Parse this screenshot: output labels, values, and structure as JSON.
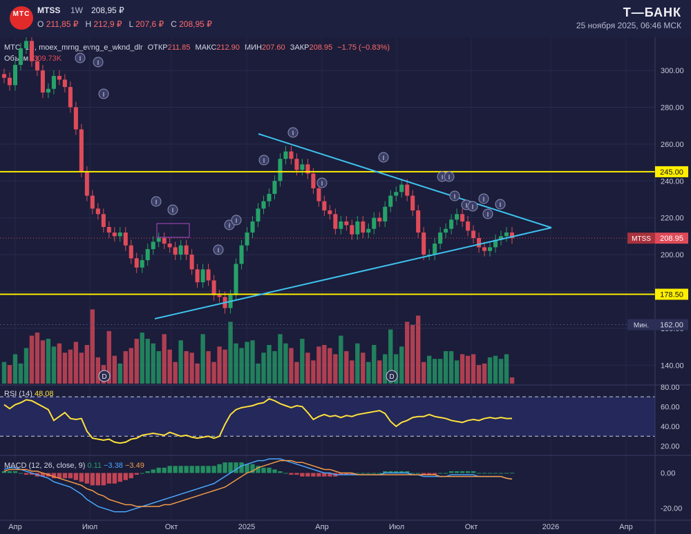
{
  "header": {
    "logo_text": "МТС",
    "ticker": "MTSS",
    "timeframe": "1W",
    "last_price": "208,95 ₽",
    "ohlc": [
      {
        "label": "O",
        "value": "211,85 ₽"
      },
      {
        "label": "H",
        "value": "212,9 ₽"
      },
      {
        "label": "L",
        "value": "207,6 ₽"
      },
      {
        "label": "C",
        "value": "208,95 ₽"
      }
    ],
    "brand": "Т—БАНК",
    "datetime": "25 ноября 2025, 06:46 МСК"
  },
  "legend": {
    "series_title": "МТС, 1H, moex_mrng_evng_e_wknd_dlr",
    "open_label": "ОТКР",
    "open": "211.85",
    "high_label": "МАКС",
    "high": "212.90",
    "low_label": "МИН",
    "low": "207.60",
    "close_label": "ЗАКР",
    "close": "208.95",
    "change": "−1.75 (−0.83%)",
    "volume_label": "Объем",
    "volume_value": "309.73K"
  },
  "colors": {
    "bg": "#1b1d3a",
    "up": "#26a269",
    "down": "#e04b59",
    "level": "#ffee00",
    "trend": "#3fc3f0",
    "rsi": "#ffe23b",
    "macd": "#4aa8ff",
    "signal": "#f39c47"
  },
  "chart_data": [
    {
      "type": "candlestick",
      "title": "МТС, 1H, moex_mrng_evng_e_wknd_dlr",
      "y_axis_ticks": [
        140,
        160,
        180,
        200,
        220,
        240,
        260,
        280,
        300
      ],
      "x_axis_ticks": [
        "Апр",
        "Июл",
        "Окт",
        "2025",
        "Апр",
        "Июл",
        "Окт",
        "2026",
        "Апр"
      ],
      "ylim": [
        130,
        318
      ],
      "horizontal_levels": [
        {
          "value": 245.0,
          "label": "245.00"
        },
        {
          "value": 178.5,
          "label": "178.50"
        }
      ],
      "low_marker": {
        "label": "Мин.",
        "value": "162.00"
      },
      "current_price": {
        "ticker": "MTSS",
        "value": "208.95"
      },
      "event_markers": [
        "I",
        "D"
      ],
      "candles_close": [
        296,
        292,
        303,
        312,
        316,
        305,
        300,
        288,
        290,
        297,
        295,
        291,
        280,
        268,
        245,
        232,
        225,
        222,
        215,
        212,
        210,
        212,
        205,
        198,
        193,
        197,
        203,
        207,
        209,
        206,
        204,
        200,
        205,
        200,
        192,
        185,
        192,
        186,
        178,
        177,
        171,
        178,
        195,
        205,
        212,
        218,
        225,
        229,
        233,
        240,
        252,
        256,
        252,
        246,
        249,
        244,
        236,
        229,
        224,
        222,
        214,
        218,
        216,
        211,
        218,
        212,
        214,
        220,
        218,
        226,
        232,
        234,
        238,
        232,
        224,
        212,
        200,
        200,
        206,
        212,
        214,
        219,
        222,
        218,
        213,
        209,
        204,
        202,
        204,
        208,
        210,
        212,
        208.95
      ]
    },
    {
      "type": "bar",
      "title": "Объем",
      "values": [
        14,
        12,
        19,
        13,
        23,
        31,
        33,
        28,
        29,
        24,
        26,
        20,
        22,
        27,
        20,
        25,
        48,
        17,
        12,
        34,
        18,
        13,
        21,
        23,
        29,
        33,
        29,
        26,
        21,
        32,
        22,
        14,
        28,
        21,
        20,
        13,
        32,
        21,
        14,
        24,
        22,
        40,
        26,
        23,
        27,
        28,
        13,
        20,
        25,
        21,
        32,
        26,
        23,
        14,
        29,
        20,
        15,
        24,
        25,
        23,
        19,
        31,
        21,
        15,
        26,
        20,
        14,
        25,
        15,
        19,
        35,
        19,
        24,
        40,
        38,
        44,
        14,
        18,
        16,
        16,
        21,
        21,
        15,
        19,
        18,
        19,
        12,
        13,
        17,
        18,
        16,
        19,
        4
      ]
    },
    {
      "type": "line",
      "title": "RSI (14)",
      "last_value": "48.08",
      "y_axis_ticks": [
        20.0,
        40.0,
        60.0,
        80.0
      ],
      "bands": [
        30,
        70
      ],
      "ylim": [
        12,
        82
      ],
      "values": [
        62,
        58,
        62,
        64,
        67,
        66,
        63,
        60,
        57,
        46,
        50,
        54,
        48,
        47,
        48,
        35,
        28,
        27,
        26,
        27,
        24,
        23,
        24,
        27,
        28,
        31,
        32,
        33,
        32,
        31,
        34,
        32,
        30,
        31,
        29,
        28,
        29,
        30,
        28,
        30,
        42,
        52,
        57,
        59,
        60,
        61,
        63,
        64,
        68,
        66,
        63,
        61,
        59,
        61,
        60,
        54,
        47,
        50,
        52,
        50,
        51,
        49,
        51,
        50,
        52,
        53,
        54,
        55,
        56,
        53,
        45,
        40,
        44,
        46,
        49,
        50,
        50,
        52,
        50,
        49,
        48,
        46,
        45,
        44,
        46,
        47,
        46,
        48,
        49,
        48,
        49,
        48,
        48.08
      ]
    },
    {
      "type": "line",
      "title": "MACD (12, 26, close, 9)",
      "values_label": [
        "0.11",
        "−3.38",
        "−3.49"
      ],
      "y_axis_ticks": [
        -20.0,
        0.0
      ],
      "ylim": [
        -26,
        10
      ],
      "macd": [
        2,
        3,
        3,
        2,
        1,
        0,
        -1,
        -2,
        -3,
        -5,
        -6,
        -7,
        -8,
        -10,
        -12,
        -15,
        -17,
        -19,
        -20,
        -21,
        -22,
        -22,
        -22,
        -21,
        -20,
        -19,
        -18,
        -17,
        -16,
        -15,
        -14,
        -13,
        -12,
        -11,
        -10,
        -9,
        -8,
        -7,
        -6,
        -4,
        -2,
        0,
        2,
        4,
        5,
        6,
        7,
        7,
        8,
        8,
        8,
        7,
        6,
        5,
        4,
        3,
        2,
        1,
        0,
        0,
        -1,
        -1,
        -1,
        -1,
        -1,
        -1,
        -1,
        -1,
        -1,
        0,
        0,
        0,
        0,
        0,
        -1,
        -1,
        -2,
        -2,
        -2,
        -2,
        -2,
        -1,
        -1,
        -1,
        -1,
        -1,
        -2,
        -2,
        -2,
        -2,
        -2,
        -3,
        -3.38
      ],
      "signal": [
        1,
        2,
        2,
        2,
        2,
        1,
        1,
        0,
        -1,
        -2,
        -3,
        -4,
        -5,
        -6,
        -7,
        -9,
        -10,
        -12,
        -13,
        -15,
        -16,
        -17,
        -18,
        -18,
        -19,
        -19,
        -19,
        -19,
        -19,
        -18,
        -18,
        -17,
        -16,
        -15,
        -14,
        -13,
        -12,
        -11,
        -10,
        -9,
        -8,
        -6,
        -4,
        -2,
        0,
        1,
        3,
        4,
        5,
        6,
        7,
        7,
        7,
        6,
        6,
        5,
        4,
        3,
        2,
        2,
        1,
        0,
        0,
        0,
        -1,
        -1,
        -1,
        -1,
        -1,
        -1,
        -1,
        -1,
        -1,
        -1,
        -1,
        -1,
        -1,
        -1,
        -1,
        -2,
        -2,
        -2,
        -2,
        -2,
        -2,
        -2,
        -2,
        -2,
        -2,
        -2,
        -2,
        -3,
        -3.49
      ]
    }
  ]
}
